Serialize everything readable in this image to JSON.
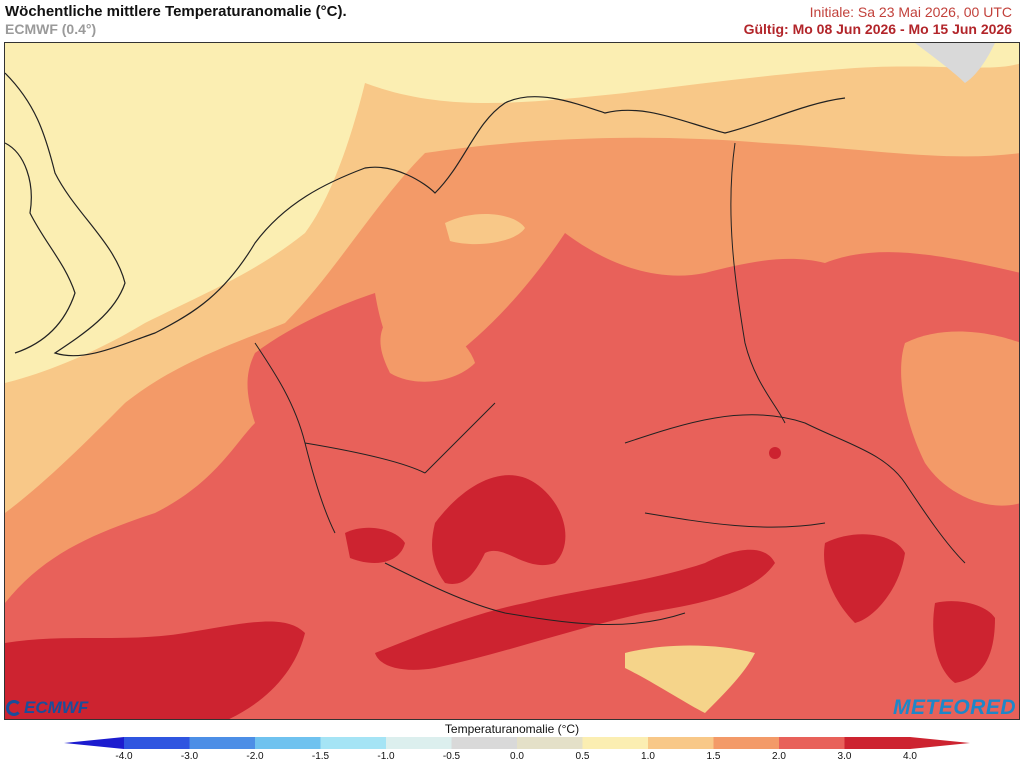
{
  "header": {
    "title": "Wöchentliche mittlere Temperaturanomalie (°C).",
    "subtitle": "ECMWF (0.4°)",
    "init": "Initiale: Sa 23 Mai 2026, 00 UTC",
    "valid": "Gültig: Mo 08 Jun 2026 - Mo 15 Jun 2026"
  },
  "legend": {
    "title": "Temperaturanomalie (°C)",
    "ticks": [
      "-4.0",
      "-3.0",
      "-2.0",
      "-1.5",
      "-1.0",
      "-0.5",
      "0.0",
      "0.5",
      "1.0",
      "1.5",
      "2.0",
      "3.0",
      "4.0"
    ],
    "colors": [
      "#1c1ccf",
      "#2f55e0",
      "#4c8ee6",
      "#6fc2ef",
      "#a5e4f5",
      "#dcefee",
      "#d9d9d9",
      "#e4e0c8",
      "#fbeeb2",
      "#f8c888",
      "#f39a68",
      "#e8615a",
      "#cd2330"
    ]
  },
  "logos": {
    "left": "ECMWF",
    "right": "METEORED"
  },
  "map": {
    "region": "Mitteleuropa",
    "classes": [
      {
        "range": "0.5 – 1.0",
        "color": "#fbeeb2"
      },
      {
        "range": "1.0 – 1.5",
        "color": "#f8c888"
      },
      {
        "range": "1.5 – 2.0",
        "color": "#f39a68"
      },
      {
        "range": "2.0 – 3.0",
        "color": "#e8615a"
      },
      {
        "range": "3.0 – 4.0",
        "color": "#cd2330"
      }
    ],
    "sea_color": "#fbeeb2",
    "border_color": "#222222"
  }
}
